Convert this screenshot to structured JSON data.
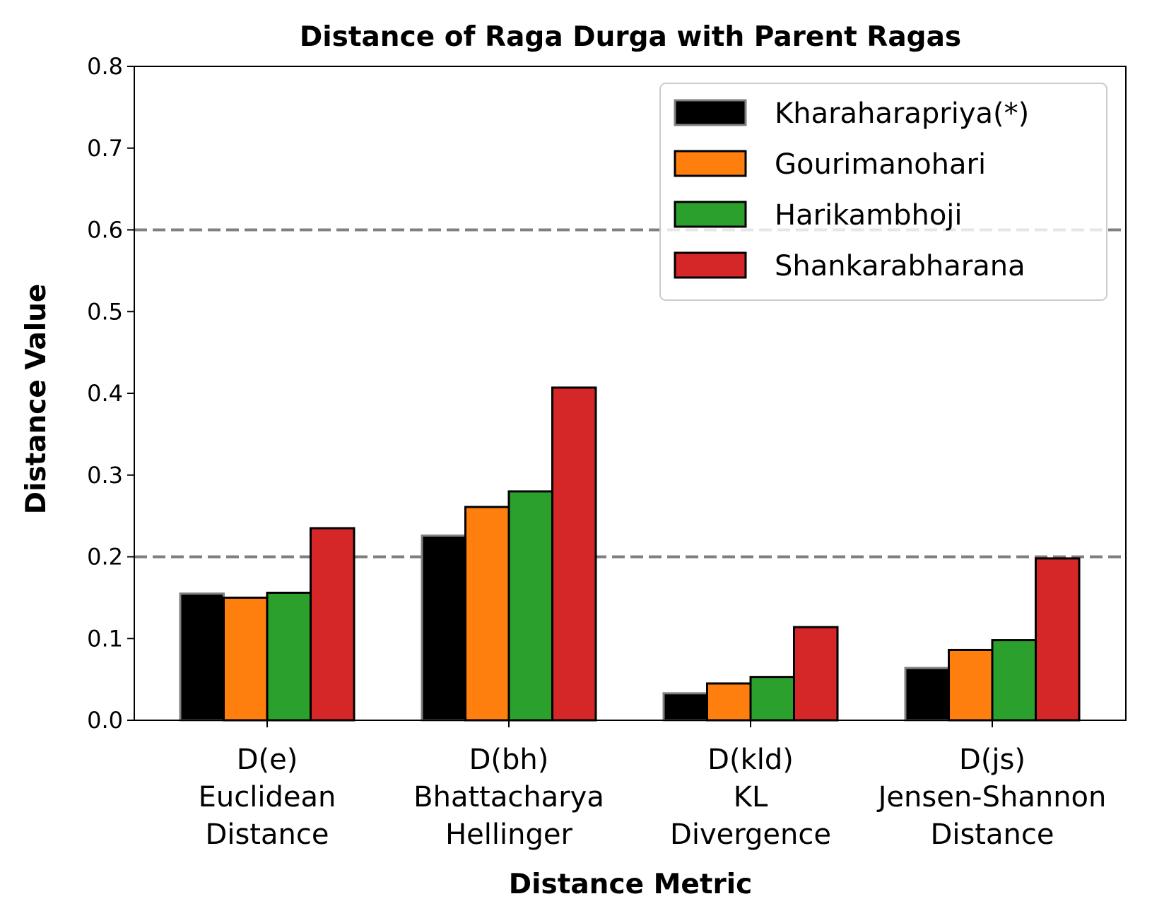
{
  "chart_data": {
    "type": "bar",
    "title": "Distance of Raga Durga with Parent Ragas",
    "xlabel": "Distance Metric",
    "ylabel": "Distance Value",
    "ylim": [
      0,
      0.8
    ],
    "yticks": [
      "0.0",
      "0.1",
      "0.2",
      "0.3",
      "0.4",
      "0.5",
      "0.6",
      "0.7",
      "0.8"
    ],
    "categories": [
      [
        "D(e)",
        "Euclidean",
        "Distance"
      ],
      [
        "D(bh)",
        "Bhattacharya",
        "Hellinger"
      ],
      [
        "D(kld)",
        "KL",
        "Divergence"
      ],
      [
        "D(js)",
        "Jensen-Shannon",
        "Distance"
      ]
    ],
    "series": [
      {
        "name": "Kharaharapriya(*)",
        "color": "#000000",
        "edge": "#808080",
        "values": [
          0.155,
          0.226,
          0.033,
          0.064
        ]
      },
      {
        "name": "Gourimanohari",
        "color": "#ff7f0e",
        "edge": "#000000",
        "values": [
          0.15,
          0.261,
          0.045,
          0.086
        ]
      },
      {
        "name": "Harikambhoji",
        "color": "#2ca02c",
        "edge": "#000000",
        "values": [
          0.156,
          0.28,
          0.053,
          0.098
        ]
      },
      {
        "name": "Shankarabharana",
        "color": "#d62728",
        "edge": "#000000",
        "values": [
          0.235,
          0.407,
          0.114,
          0.198
        ]
      }
    ],
    "reference_lines": [
      0.2,
      0.6
    ],
    "reference_line_color": "#808080",
    "grid": false,
    "legend_position": "top-right"
  }
}
